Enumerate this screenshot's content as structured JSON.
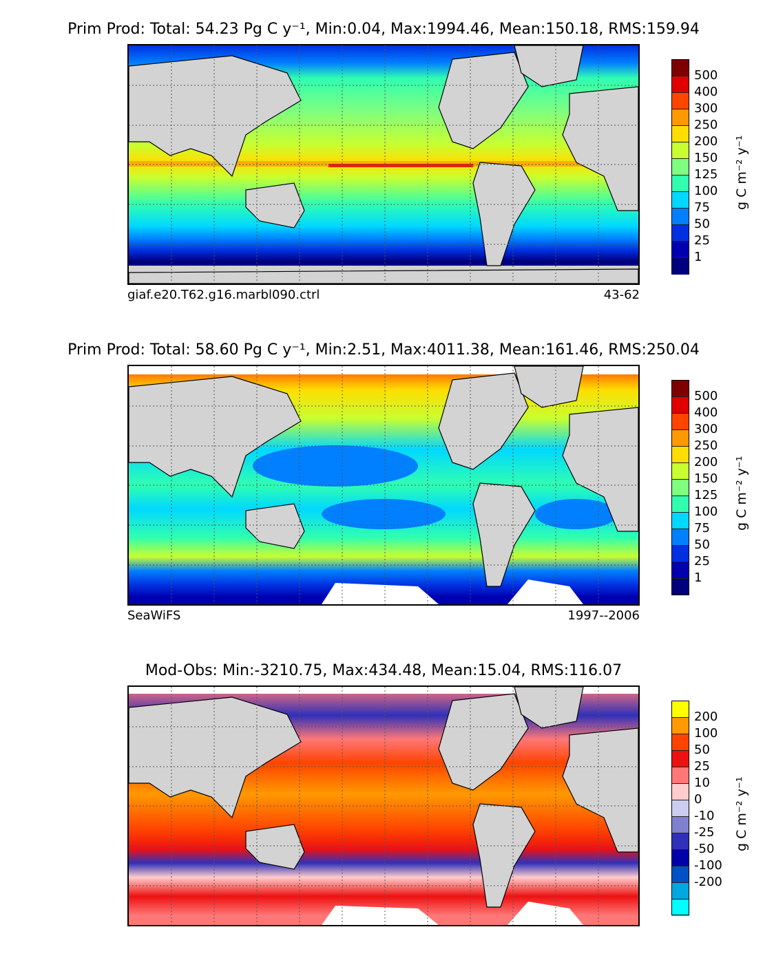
{
  "panels": [
    {
      "title": "Prim Prod: Total: 54.23 Pg C y⁻¹, Min:0.04, Max:1994.46, Mean:150.18, RMS:159.94",
      "label_left": "giaf.e20.T62.g16.marbl090.ctrl",
      "label_right": "43-62",
      "colorbar_title": "g C m⁻² y⁻¹",
      "colorbar_ticks": [
        "500",
        "400",
        "300",
        "250",
        "200",
        "150",
        "125",
        "100",
        "75",
        "50",
        "25",
        "1"
      ],
      "colorbar_colors": [
        "#7f0000",
        "#e00000",
        "#ff4500",
        "#ff9900",
        "#ffdd00",
        "#c8ff30",
        "#7fff7f",
        "#30ffb0",
        "#00d8ff",
        "#0080ff",
        "#0030e0",
        "#0000b0",
        "#00007f"
      ]
    },
    {
      "title": "Prim Prod: Total: 58.60 Pg C y⁻¹, Min:2.51, Max:4011.38, Mean:161.46, RMS:250.04",
      "label_left": "SeaWiFS",
      "label_right": "1997--2006",
      "colorbar_title": "g C m⁻² y⁻¹",
      "colorbar_ticks": [
        "500",
        "400",
        "300",
        "250",
        "200",
        "150",
        "125",
        "100",
        "75",
        "50",
        "25",
        "1"
      ],
      "colorbar_colors": [
        "#7f0000",
        "#e00000",
        "#ff4500",
        "#ff9900",
        "#ffdd00",
        "#c8ff30",
        "#7fff7f",
        "#30ffb0",
        "#00d8ff",
        "#0080ff",
        "#0030e0",
        "#0000b0",
        "#00007f"
      ]
    },
    {
      "title": "Mod-Obs: Min:-3210.75, Max:434.48, Mean:15.04, RMS:116.07",
      "label_left": "",
      "label_right": "",
      "colorbar_title": "g C m⁻² y⁻¹",
      "colorbar_ticks": [
        "200",
        "100",
        "50",
        "25",
        "10",
        "0",
        "-10",
        "-25",
        "-50",
        "-100",
        "-200"
      ],
      "colorbar_colors": [
        "#ffff00",
        "#ff9900",
        "#ff4400",
        "#ee1111",
        "#ff7777",
        "#ffcccc",
        "#ccccf0",
        "#8080d0",
        "#3030b8",
        "#0000a8",
        "#0050c8",
        "#00a8e0",
        "#00ffff"
      ]
    }
  ],
  "colors": {
    "land": "#d3d3d3",
    "missing": "#ffffff",
    "coast": "#000000"
  }
}
